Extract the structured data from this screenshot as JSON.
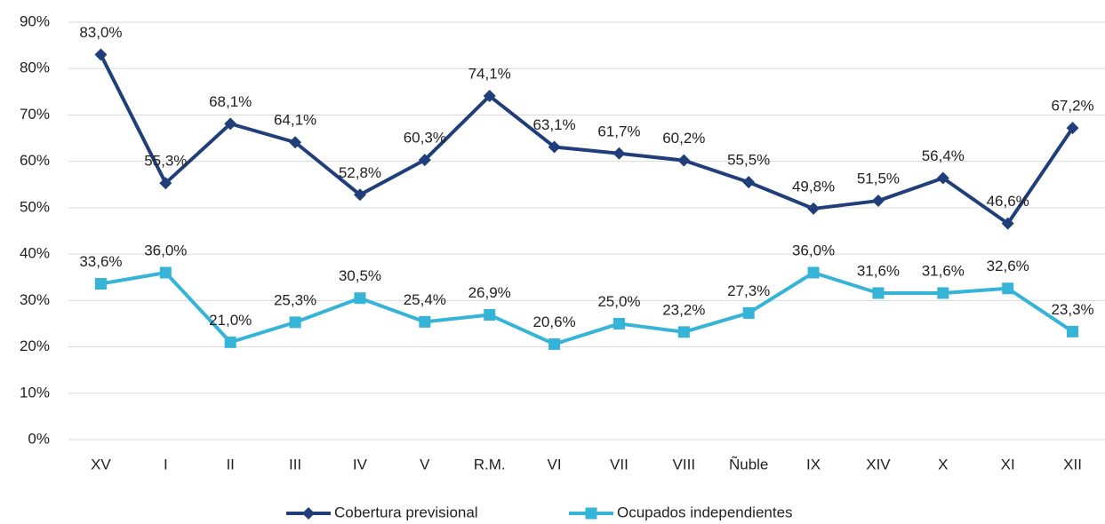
{
  "chart_data": {
    "type": "line",
    "categories": [
      "XV",
      "I",
      "II",
      "III",
      "IV",
      "V",
      "R.M.",
      "VI",
      "VII",
      "VIII",
      "Ñuble",
      "IX",
      "XIV",
      "X",
      "XI",
      "XII"
    ],
    "series": [
      {
        "name": "Cobertura previsional",
        "color": "#203f7a",
        "marker": "diamond",
        "values": [
          83.0,
          55.3,
          68.1,
          64.1,
          52.8,
          60.3,
          74.1,
          63.1,
          61.7,
          60.2,
          55.5,
          49.8,
          51.5,
          56.4,
          46.6,
          67.2
        ],
        "value_labels": [
          "83,0%",
          "55,3%",
          "68,1%",
          "64,1%",
          "52,8%",
          "60,3%",
          "74,1%",
          "63,1%",
          "61,7%",
          "60,2%",
          "55,5%",
          "49,8%",
          "51,5%",
          "56,4%",
          "46,6%",
          "67,2%"
        ]
      },
      {
        "name": "Ocupados independientes",
        "color": "#36b4d8",
        "marker": "square",
        "values": [
          33.6,
          36.0,
          21.0,
          25.3,
          30.5,
          25.4,
          26.9,
          20.6,
          25.0,
          23.2,
          27.3,
          36.0,
          31.6,
          31.6,
          32.6,
          23.3
        ],
        "value_labels": [
          "33,6%",
          "36,0%",
          "21,0%",
          "25,3%",
          "30,5%",
          "25,4%",
          "26,9%",
          "20,6%",
          "25,0%",
          "23,2%",
          "27,3%",
          "36,0%",
          "31,6%",
          "31,6%",
          "32,6%",
          "23,3%"
        ]
      }
    ],
    "ylim": [
      0,
      90
    ],
    "yticks": [
      {
        "value": 0,
        "label": "0%"
      },
      {
        "value": 10,
        "label": "10%"
      },
      {
        "value": 20,
        "label": "20%"
      },
      {
        "value": 30,
        "label": "30%"
      },
      {
        "value": 40,
        "label": "40%"
      },
      {
        "value": 50,
        "label": "50%"
      },
      {
        "value": 60,
        "label": "60%"
      },
      {
        "value": 70,
        "label": "70%"
      },
      {
        "value": 80,
        "label": "80%"
      },
      {
        "value": 90,
        "label": "90%"
      }
    ],
    "grid": true,
    "legend": "bottom"
  }
}
